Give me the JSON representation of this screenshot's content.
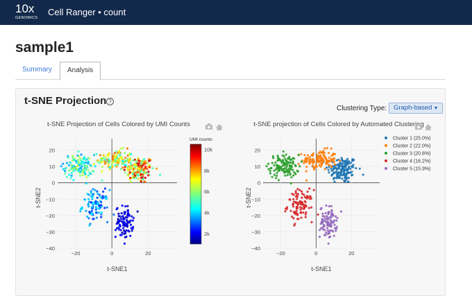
{
  "header": {
    "logo_big": "10x",
    "logo_small": "GENOMICS",
    "app_title": "Cell Ranger • count"
  },
  "page": {
    "sample_title": "sample1"
  },
  "tabs": [
    {
      "label": "Summary"
    },
    {
      "label": "Analysis"
    }
  ],
  "section": {
    "title": "t-SNE Projection",
    "help_icon": "?",
    "clustering_label": "Clustering Type:",
    "clustering_value": "Graph-based"
  },
  "plot_umi": {
    "title": "t-SNE Projection of Cells Colored by UMI Counts",
    "xlabel": "t-SNE1",
    "ylabel": "t-SNE2",
    "colorbar_title": "UMI counts",
    "colorbar_ticks": [
      "2k",
      "4k",
      "6k",
      "8k",
      "10k"
    ],
    "colorbar_values": [
      2000,
      4000,
      6000,
      8000,
      10000
    ]
  },
  "plot_cluster": {
    "title": "t-SNE projection of Cells Colored by Automated Clustering",
    "xlabel": "t-SNE1",
    "ylabel": "t-SNE2",
    "legend": [
      {
        "label": "Cluster 1 (25.0%)",
        "color": "#1f77b4"
      },
      {
        "label": "Cluster 2 (22.0%)",
        "color": "#ff7f0e"
      },
      {
        "label": "Cluster 3 (20.8%)",
        "color": "#2ca02c"
      },
      {
        "label": "Cluster 4 (16.2%)",
        "color": "#d62728"
      },
      {
        "label": "Cluster 5 (15.9%)",
        "color": "#9467bd"
      }
    ]
  },
  "chart_data": [
    {
      "type": "scatter",
      "title": "t-SNE Projection of Cells Colored by UMI Counts",
      "xlabel": "t-SNE1",
      "ylabel": "t-SNE2",
      "xlim": [
        -30,
        36
      ],
      "ylim": [
        -40,
        27
      ],
      "x_ticks": [
        "−20",
        "0",
        "20"
      ],
      "y_ticks": [
        "20",
        "10",
        "0",
        "−10",
        "−20",
        "−30",
        "−40"
      ],
      "x_tick_values": [
        -20,
        0,
        20
      ],
      "y_tick_values": [
        20,
        10,
        0,
        -10,
        -20,
        -30,
        -40
      ],
      "color_scale": "jet",
      "color_range": [
        1000,
        10500
      ]
    },
    {
      "type": "scatter",
      "title": "t-SNE projection of Cells Colored by Automated Clustering",
      "xlabel": "t-SNE1",
      "ylabel": "t-SNE2",
      "xlim": [
        -30,
        36
      ],
      "ylim": [
        -40,
        27
      ],
      "x_ticks": [
        "−20",
        "0",
        "20"
      ],
      "y_ticks": [
        "20",
        "10",
        "0",
        "−10",
        "−20",
        "−30",
        "−40"
      ],
      "x_tick_values": [
        -20,
        0,
        20
      ],
      "y_tick_values": [
        20,
        10,
        0,
        -10,
        -20,
        -30,
        -40
      ],
      "series": [
        {
          "name": "Cluster 1 (25.0%)",
          "center": [
            15,
            8
          ],
          "spread": [
            7,
            7
          ]
        },
        {
          "name": "Cluster 2 (22.0%)",
          "center": [
            2,
            14
          ],
          "spread": [
            8,
            5
          ]
        },
        {
          "name": "Cluster 3 (20.8%)",
          "center": [
            -18,
            10
          ],
          "spread": [
            7,
            6
          ]
        },
        {
          "name": "Cluster 4 (16.2%)",
          "center": [
            -9,
            -14
          ],
          "spread": [
            6,
            8
          ]
        },
        {
          "name": "Cluster 5 (15.9%)",
          "center": [
            7,
            -24
          ],
          "spread": [
            4,
            8
          ]
        }
      ]
    }
  ]
}
